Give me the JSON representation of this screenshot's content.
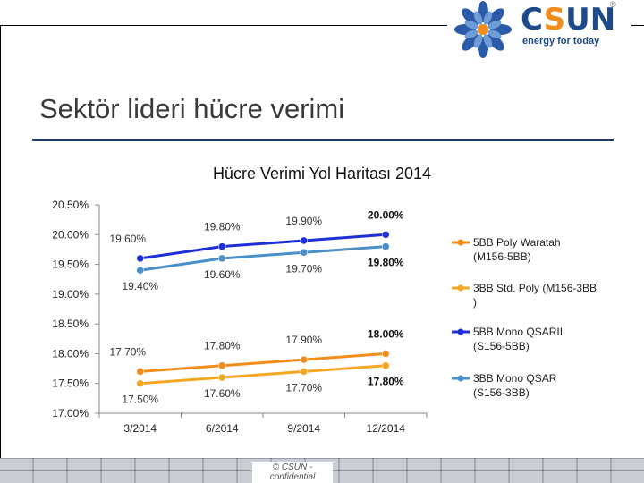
{
  "header": {
    "page_title": "Sektör lideri hücre verimi",
    "logo": {
      "brand_c": "C",
      "brand_s": "S",
      "brand_un": "UN",
      "tagline": "energy for today",
      "registered": "®"
    }
  },
  "footer": {
    "note": "© CSUN - confidential"
  },
  "colors": {
    "title_rule": "#1f3a6e",
    "orange": "#f28c1a",
    "light_orange": "#f5a623",
    "dark_blue": "#1f2fd6",
    "steel_blue": "#4a8fc8"
  },
  "chart_data": {
    "type": "line",
    "title": "Hücre Verimi Yol Haritası 2014",
    "categories": [
      "3/2014",
      "6/2014",
      "9/2014",
      "12/2014"
    ],
    "y_ticks": [
      "20.50%",
      "20.00%",
      "19.50%",
      "19.00%",
      "18.50%",
      "18.00%",
      "17.50%",
      "17.00%"
    ],
    "ylim": [
      17.0,
      20.5
    ],
    "xlabel": "",
    "ylabel": "",
    "legend_position": "right",
    "series": [
      {
        "name": "5BB Poly Waratah (M156-5BB)",
        "color": "#f28c1a",
        "values": [
          17.7,
          17.8,
          17.9,
          18.0
        ],
        "labels": [
          "17.70%",
          "17.80%",
          "17.90%",
          "18.00%"
        ]
      },
      {
        "name": "3BB Std. Poly (M156-3BB)",
        "color": "#f5a623",
        "values": [
          17.5,
          17.6,
          17.7,
          17.8
        ],
        "labels": [
          "17.50%",
          "17.60%",
          "17.70%",
          "17.80%"
        ]
      },
      {
        "name": "5BB Mono QSARII (S156-5BB)",
        "color": "#1f2fd6",
        "values": [
          19.6,
          19.8,
          19.9,
          20.0
        ],
        "labels": [
          "19.60%",
          "19.80%",
          "19.90%",
          "20.00%"
        ]
      },
      {
        "name": "3BB Mono QSAR (S156-3BB)",
        "color": "#4a8fc8",
        "values": [
          19.4,
          19.6,
          19.7,
          19.8
        ],
        "labels": [
          "19.40%",
          "19.60%",
          "19.70%",
          "19.80%"
        ]
      }
    ]
  }
}
